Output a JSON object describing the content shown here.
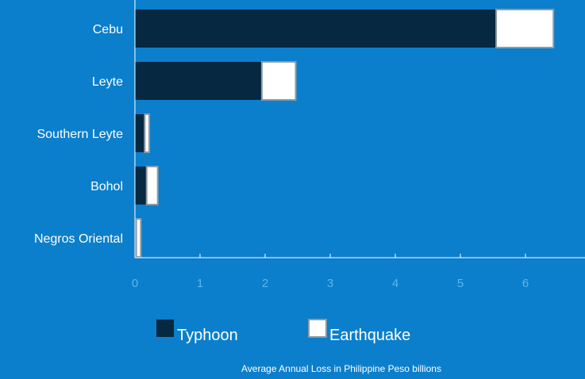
{
  "chart_data": {
    "type": "bar",
    "orientation": "horizontal",
    "stacked": true,
    "categories": [
      "Cebu",
      "Leyte",
      "Southern Leyte",
      "Bohol",
      "Negros Oriental"
    ],
    "series": [
      {
        "name": "Typhoon",
        "values": [
          5.55,
          1.95,
          0.15,
          0.18,
          0.02
        ]
      },
      {
        "name": "Earthquake",
        "values": [
          0.88,
          0.52,
          0.07,
          0.17,
          0.07
        ]
      }
    ],
    "xlim": [
      0,
      6.9
    ],
    "xticks": [
      0,
      1,
      2,
      3,
      4,
      5,
      6
    ],
    "xlabel": "Average Annual Loss in Philippine Peso billions",
    "legend_position": "bottom",
    "grid": false
  },
  "colors": {
    "background": "#0b7fcc",
    "typhoon": "#062840",
    "earthquake": "#ffffff",
    "earthquake_border": "#8c9aa6",
    "axis": "#ffffff",
    "tick_label": "#5fb4ea"
  }
}
